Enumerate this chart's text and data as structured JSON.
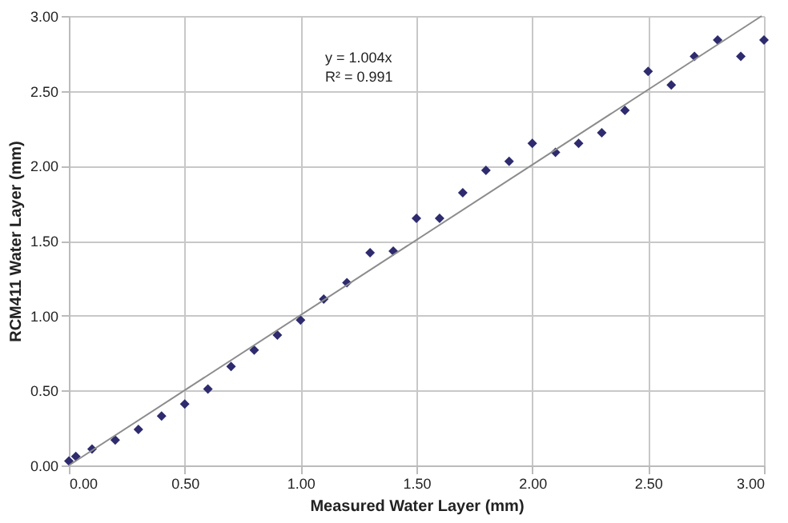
{
  "chart_data": {
    "type": "scatter",
    "xlabel": "Measured Water Layer (mm)",
    "ylabel": "RCM411 Water Layer (mm)",
    "xlim": [
      0,
      3
    ],
    "ylim": [
      0,
      3
    ],
    "xticks": [
      {
        "value": 0,
        "label": "0.00"
      },
      {
        "value": 0.5,
        "label": "0.50"
      },
      {
        "value": 1,
        "label": "1.00"
      },
      {
        "value": 1.5,
        "label": "1.50"
      },
      {
        "value": 2,
        "label": "2.00"
      },
      {
        "value": 2.5,
        "label": "2.50"
      },
      {
        "value": 3,
        "label": "3.00"
      }
    ],
    "yticks": [
      {
        "value": 0,
        "label": "0.00"
      },
      {
        "value": 0.5,
        "label": "0.50"
      },
      {
        "value": 1,
        "label": "1.00"
      },
      {
        "value": 1.5,
        "label": "1.50"
      },
      {
        "value": 2,
        "label": "2.00"
      },
      {
        "value": 2.5,
        "label": "2.50"
      },
      {
        "value": 3,
        "label": "3.00"
      }
    ],
    "grid": true,
    "annotations": [
      "y = 1.004x",
      "R² = 0.991"
    ],
    "series": [
      {
        "marker": "diamond",
        "color": "#2e2b6e",
        "x": [
          0,
          0.03,
          0.1,
          0.2,
          0.3,
          0.4,
          0.5,
          0.6,
          0.7,
          0.8,
          0.9,
          1.0,
          1.1,
          1.2,
          1.3,
          1.4,
          1.5,
          1.6,
          1.7,
          1.8,
          1.9,
          2.0,
          2.1,
          2.2,
          2.3,
          2.4,
          2.5,
          2.6,
          2.7,
          2.8,
          2.9,
          3.0
        ],
        "values": [
          0.03,
          0.06,
          0.11,
          0.17,
          0.24,
          0.33,
          0.41,
          0.51,
          0.66,
          0.77,
          0.87,
          0.97,
          1.11,
          1.22,
          1.42,
          1.43,
          1.65,
          1.65,
          1.82,
          1.97,
          2.03,
          2.15,
          2.09,
          2.15,
          2.22,
          2.37,
          2.63,
          2.54,
          2.73,
          2.84,
          2.73,
          2.84
        ]
      },
      {
        "type": "line",
        "marker": "none",
        "color": "#8c8c8c",
        "x": [
          0,
          2.99
        ],
        "values": [
          0,
          3.0
        ]
      }
    ]
  }
}
